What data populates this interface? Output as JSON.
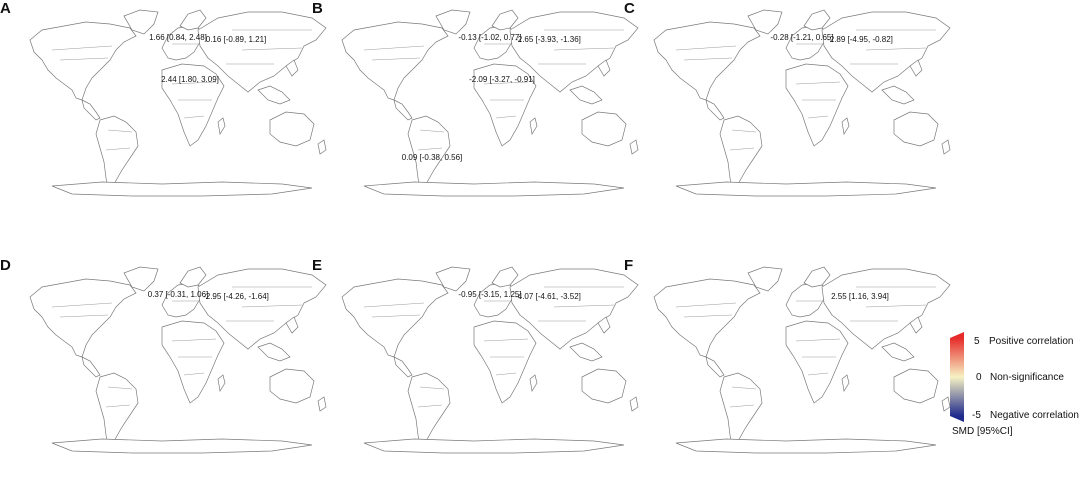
{
  "panels": [
    {
      "letter": "A",
      "regions": {
        "europe": "pos_light",
        "asia": "neutral",
        "africa": "pos_strong",
        "americas": "none",
        "oceania": "none"
      },
      "labels": [
        {
          "text": "1.66 [0.84, 2.48]",
          "region": "europe"
        },
        {
          "text": "0.16 [-0.89, 1.21]",
          "region": "asia"
        },
        {
          "text": "2.44 [1.80, 3.09]",
          "region": "africa"
        }
      ]
    },
    {
      "letter": "B",
      "regions": {
        "europe": "neutral",
        "asia": "neg_strong",
        "africa": "neg_light",
        "americas": "neutral_south",
        "oceania": "none"
      },
      "labels": [
        {
          "text": "-0.13 [-1.02, 0.77]",
          "region": "europe"
        },
        {
          "text": "-2.65 [-3.93, -1.36]",
          "region": "asia"
        },
        {
          "text": "-2.09 [-3.27, -0.91]",
          "region": "africa"
        },
        {
          "text": "0.09 [-0.38, 0.56]",
          "region": "south_america"
        }
      ]
    },
    {
      "letter": "C",
      "regions": {
        "europe": "neutral",
        "asia": "neg_strong",
        "africa": "none",
        "americas": "none",
        "oceania": "none"
      },
      "labels": [
        {
          "text": "-0.28 [-1.21, 0.65]",
          "region": "europe"
        },
        {
          "text": "-2.89 [-4.95, -0.82]",
          "region": "asia"
        }
      ]
    },
    {
      "letter": "D",
      "regions": {
        "europe": "neutral",
        "asia": "neg_strong",
        "africa": "none",
        "americas": "none",
        "oceania": "none"
      },
      "labels": [
        {
          "text": "0.37 [-0.31, 1.06]",
          "region": "europe"
        },
        {
          "text": "-2.95 [-4.26, -1.64]",
          "region": "asia"
        }
      ]
    },
    {
      "letter": "E",
      "regions": {
        "europe": "neutral",
        "asia": "neg_strong",
        "africa": "none",
        "americas": "none",
        "oceania": "none"
      },
      "labels": [
        {
          "text": "-0.95 [-3.15, 1.25]",
          "region": "europe"
        },
        {
          "text": "-4.07 [-4.61, -3.52]",
          "region": "asia"
        }
      ]
    },
    {
      "letter": "F",
      "regions": {
        "europe": "none",
        "asia": "pos_strong",
        "africa": "none",
        "americas": "none",
        "oceania": "none"
      },
      "labels": [
        {
          "text": "2.55 [1.16, 3.94]",
          "region": "asia"
        }
      ]
    }
  ],
  "legend": {
    "title": "SMD [95%CI]",
    "max_tick": "5",
    "mid_tick": "0",
    "min_tick": "-5",
    "positive_label": "Positive correlation",
    "neutral_label": "Non-significance",
    "negative_label": "Negative correlation",
    "color_top": "#e62b2b",
    "color_mid": "#f7f2c4",
    "color_bottom": "#1f2a8c"
  },
  "fills": {
    "pos_strong": "#e62b2b",
    "pos_light": "#eeb4b8",
    "neutral": "#f7f1c4",
    "neutral_south": "#f7f1c4",
    "neg_strong": "#1f2e8f",
    "neg_light": "#b7c3e2",
    "none": "#ffffff"
  }
}
